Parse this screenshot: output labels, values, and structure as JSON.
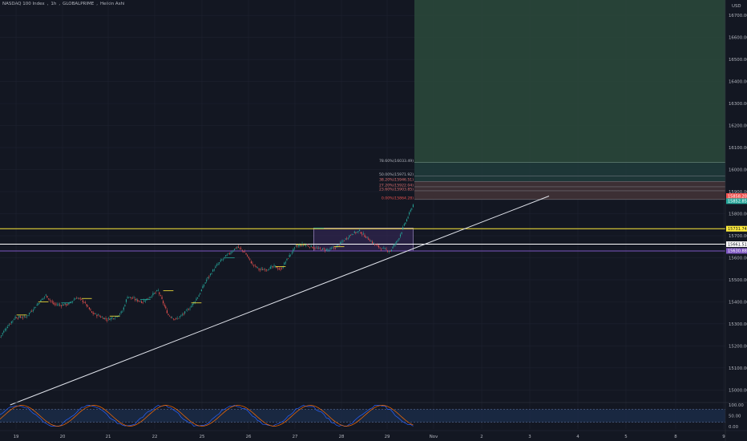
{
  "header": {
    "symbol": "NASDAQ 100 Index",
    "interval": "1h",
    "broker": "GLOBALPRIME",
    "chart_style": "Heikin Ashi"
  },
  "currency": "USD",
  "colors": {
    "background": "#131722",
    "up": "#26a69a",
    "down": "#ef5350",
    "yellow": "#ffeb3b",
    "purple": "#7e57c2",
    "white": "#ffffff",
    "target_zone": "#2c4a3b",
    "stop_zone": "#4a2c33"
  },
  "chart_data": {
    "type": "candlestick",
    "y_axis": {
      "ticks": [
        "16700.00",
        "16600.00",
        "16500.00",
        "16400.00",
        "16300.00",
        "16200.00",
        "16100.00",
        "16000.00",
        "15900.00",
        "15800.00",
        "15700.00",
        "15600.00",
        "15500.00",
        "15400.00",
        "15300.00",
        "15200.00",
        "15100.00",
        "15000.00"
      ],
      "range": [
        14950,
        16770
      ]
    },
    "x_axis": {
      "ticks": [
        "19",
        "20",
        "21",
        "22",
        "25",
        "26",
        "27",
        "28",
        "29",
        "Nov",
        "2",
        "3",
        "4",
        "5",
        "8",
        "9"
      ]
    },
    "close_path": [
      [
        0,
        15240
      ],
      [
        6,
        15290
      ],
      [
        12,
        15330
      ],
      [
        20,
        15330
      ],
      [
        28,
        15380
      ],
      [
        36,
        15430
      ],
      [
        42,
        15390
      ],
      [
        48,
        15385
      ],
      [
        54,
        15390
      ],
      [
        60,
        15420
      ],
      [
        66,
        15400
      ],
      [
        72,
        15350
      ],
      [
        78,
        15335
      ],
      [
        84,
        15320
      ],
      [
        90,
        15330
      ],
      [
        96,
        15355
      ],
      [
        100,
        15425
      ],
      [
        106,
        15410
      ],
      [
        112,
        15400
      ],
      [
        118,
        15425
      ],
      [
        124,
        15450
      ],
      [
        128,
        15395
      ],
      [
        132,
        15340
      ],
      [
        138,
        15320
      ],
      [
        144,
        15345
      ],
      [
        150,
        15380
      ],
      [
        156,
        15430
      ],
      [
        162,
        15500
      ],
      [
        168,
        15550
      ],
      [
        174,
        15590
      ],
      [
        180,
        15620
      ],
      [
        186,
        15650
      ],
      [
        192,
        15625
      ],
      [
        198,
        15570
      ],
      [
        204,
        15545
      ],
      [
        210,
        15550
      ],
      [
        216,
        15560
      ],
      [
        220,
        15545
      ],
      [
        226,
        15600
      ],
      [
        232,
        15650
      ],
      [
        238,
        15660
      ],
      [
        244,
        15650
      ],
      [
        250,
        15640
      ],
      [
        258,
        15635
      ],
      [
        264,
        15650
      ],
      [
        270,
        15680
      ],
      [
        276,
        15710
      ],
      [
        282,
        15720
      ],
      [
        288,
        15690
      ],
      [
        294,
        15660
      ],
      [
        300,
        15640
      ],
      [
        306,
        15630
      ],
      [
        312,
        15680
      ],
      [
        318,
        15760
      ],
      [
        324,
        15840
      ]
    ],
    "levels": [
      {
        "label": "15731.74",
        "price": 15731.74,
        "color": "yellow"
      },
      {
        "label": "15661.51",
        "price": 15661.51,
        "color": "white"
      },
      {
        "label": "15630.88",
        "price": 15630.88,
        "color": "purple"
      }
    ],
    "fibonacci": [
      {
        "label": "0.00%(15864.28)",
        "price": 15864.28
      },
      {
        "label": "23.60%(15903.85)",
        "price": 15903.85
      },
      {
        "label": "27.20%(15922.04)",
        "price": 15922.04
      },
      {
        "label": "38.20%(15946.51)",
        "price": 15946.51
      },
      {
        "label": "50.00%(15971.92)",
        "price": 15971.92
      },
      {
        "label": "78.60%(16033.49)",
        "price": 16033.49
      }
    ],
    "price_badges": [
      {
        "label": "15858.20",
        "price": 15880,
        "color": "down"
      },
      {
        "label": "15852.85",
        "price": 15857,
        "color": "up"
      }
    ],
    "trendline": {
      "from": [
        8,
        14990
      ],
      "to": [
        420,
        15880
      ]
    },
    "consolidation_box": {
      "from_bar": 246,
      "to_bar": 324,
      "top": 15735,
      "bottom": 15630
    },
    "target_zone": {
      "from_bar": 325,
      "top": 16770,
      "bottom": 16033.49
    },
    "oscillator": {
      "ticks": [
        "100.00",
        "50.00",
        "0.00"
      ],
      "upper_band": 80,
      "lower_band": 20
    }
  }
}
